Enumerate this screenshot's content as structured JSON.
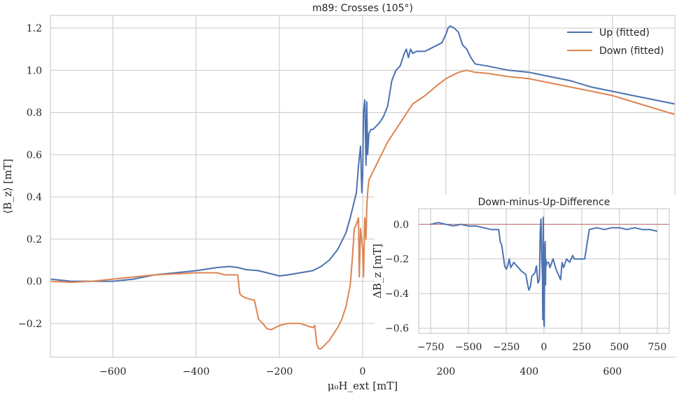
{
  "chart_data": [
    {
      "type": "line",
      "title": "m89: Crosses (105°)",
      "xlabel": "μ₀H_ext [mT]",
      "ylabel": "⟨B_z⟩ [mT]",
      "xlim": [
        -750,
        750
      ],
      "ylim": [
        -0.36,
        1.26
      ],
      "xticks": [
        -600,
        -400,
        -200,
        0,
        200,
        400,
        600
      ],
      "xtick_labels": [
        "−600",
        "−400",
        "−200",
        "0",
        "200",
        "400",
        "600"
      ],
      "yticks": [
        -0.2,
        0.0,
        0.2,
        0.4,
        0.6,
        0.8,
        1.0,
        1.2
      ],
      "ytick_labels": [
        "−0.2",
        "0.0",
        "0.2",
        "0.4",
        "0.6",
        "0.8",
        "1.0",
        "1.2"
      ],
      "grid": true,
      "legend_position": "top-right",
      "series": [
        {
          "name": "Up (fitted)",
          "color": "#4c72b0",
          "x": [
            -750,
            -700,
            -650,
            -600,
            -550,
            -500,
            -450,
            -400,
            -350,
            -320,
            -300,
            -280,
            -250,
            -220,
            -200,
            -180,
            -150,
            -120,
            -100,
            -80,
            -60,
            -40,
            -30,
            -20,
            -15,
            -10,
            -5,
            -2,
            0,
            2,
            5,
            8,
            10,
            12,
            15,
            20,
            25,
            30,
            40,
            50,
            60,
            70,
            80,
            90,
            100,
            105,
            110,
            115,
            120,
            130,
            150,
            170,
            190,
            200,
            205,
            210,
            220,
            230,
            240,
            250,
            260,
            270,
            300,
            350,
            400,
            450,
            500,
            550,
            600,
            650,
            700,
            750
          ],
          "y": [
            0.01,
            0.0,
            0.0,
            0.0,
            0.01,
            0.03,
            0.04,
            0.05,
            0.065,
            0.07,
            0.065,
            0.055,
            0.05,
            0.035,
            0.025,
            0.03,
            0.04,
            0.05,
            0.07,
            0.1,
            0.15,
            0.23,
            0.3,
            0.38,
            0.42,
            0.55,
            0.64,
            0.42,
            0.5,
            0.8,
            0.86,
            0.55,
            0.85,
            0.6,
            0.7,
            0.72,
            0.72,
            0.73,
            0.75,
            0.78,
            0.83,
            0.95,
            1.0,
            1.02,
            1.08,
            1.1,
            1.06,
            1.1,
            1.08,
            1.09,
            1.09,
            1.11,
            1.13,
            1.17,
            1.2,
            1.21,
            1.2,
            1.18,
            1.12,
            1.1,
            1.06,
            1.03,
            1.02,
            1.0,
            0.99,
            0.97,
            0.95,
            0.92,
            0.9,
            0.88,
            0.86,
            0.84
          ]
        },
        {
          "name": "Down (fitted)",
          "color": "#dd8452",
          "x": [
            -750,
            -700,
            -650,
            -600,
            -550,
            -500,
            -450,
            -400,
            -350,
            -330,
            -300,
            -295,
            -290,
            -280,
            -260,
            -250,
            -240,
            -230,
            -220,
            -200,
            -180,
            -150,
            -120,
            -115,
            -110,
            -105,
            -100,
            -90,
            -80,
            -60,
            -50,
            -40,
            -30,
            -25,
            -20,
            -15,
            -10,
            -8,
            -5,
            0,
            2,
            5,
            8,
            10,
            12,
            15,
            20,
            30,
            40,
            60,
            80,
            100,
            120,
            150,
            180,
            200,
            230,
            250,
            270,
            300,
            350,
            400,
            450,
            500,
            550,
            600,
            650,
            700,
            750
          ],
          "y": [
            0.0,
            -0.005,
            0.0,
            0.01,
            0.02,
            0.03,
            0.035,
            0.04,
            0.04,
            0.03,
            0.03,
            -0.06,
            -0.07,
            -0.08,
            -0.09,
            -0.18,
            -0.2,
            -0.225,
            -0.23,
            -0.21,
            -0.2,
            -0.2,
            -0.22,
            -0.21,
            -0.3,
            -0.32,
            -0.32,
            -0.3,
            -0.28,
            -0.22,
            -0.18,
            -0.12,
            -0.02,
            0.1,
            0.25,
            0.27,
            0.3,
            0.02,
            0.25,
            0.15,
            0.02,
            0.3,
            0.2,
            0.35,
            0.42,
            0.48,
            0.5,
            0.54,
            0.58,
            0.66,
            0.72,
            0.78,
            0.84,
            0.88,
            0.93,
            0.96,
            0.99,
            1.0,
            0.99,
            0.985,
            0.97,
            0.96,
            0.94,
            0.92,
            0.9,
            0.88,
            0.85,
            0.82,
            0.79
          ]
        }
      ]
    },
    {
      "type": "line",
      "title": "Down-minus-Up-Difference",
      "xlabel": "",
      "ylabel": "ΔB_z [mT]",
      "xlim": [
        -830,
        830
      ],
      "ylim": [
        -0.63,
        0.09
      ],
      "xticks": [
        -750,
        -500,
        -250,
        0,
        250,
        500,
        750
      ],
      "xtick_labels": [
        "−750",
        "−500",
        "−250",
        "0",
        "250",
        "500",
        "750"
      ],
      "yticks": [
        0.0,
        -0.2,
        -0.4,
        -0.6
      ],
      "ytick_labels": [
        "0.0",
        "−0.2",
        "−0.4",
        "−0.6"
      ],
      "grid": true,
      "reference_line": {
        "y": 0.0,
        "color": "#c44e52"
      },
      "series": [
        {
          "color": "#4c72b0",
          "x": [
            -750,
            -700,
            -650,
            -600,
            -550,
            -500,
            -450,
            -400,
            -350,
            -300,
            -290,
            -280,
            -260,
            -250,
            -240,
            -230,
            -220,
            -200,
            -180,
            -150,
            -120,
            -110,
            -100,
            -90,
            -80,
            -60,
            -50,
            -40,
            -30,
            -25,
            -20,
            -15,
            -10,
            -8,
            -5,
            0,
            2,
            5,
            8,
            10,
            12,
            15,
            20,
            30,
            40,
            60,
            80,
            100,
            110,
            120,
            130,
            150,
            170,
            190,
            200,
            210,
            230,
            250,
            270,
            300,
            350,
            400,
            450,
            500,
            550,
            600,
            650,
            700,
            750
          ],
          "y": [
            0.0,
            0.01,
            0.0,
            -0.01,
            0.0,
            -0.01,
            -0.01,
            -0.02,
            -0.03,
            -0.03,
            -0.1,
            -0.12,
            -0.24,
            -0.26,
            -0.24,
            -0.2,
            -0.25,
            -0.22,
            -0.24,
            -0.27,
            -0.29,
            -0.34,
            -0.38,
            -0.36,
            -0.3,
            -0.28,
            -0.24,
            -0.34,
            -0.32,
            -0.05,
            0.03,
            -0.2,
            -0.3,
            -0.55,
            0.04,
            -0.58,
            -0.59,
            -0.15,
            -0.1,
            -0.35,
            -0.2,
            -0.24,
            -0.22,
            -0.22,
            -0.25,
            -0.2,
            -0.26,
            -0.3,
            -0.32,
            -0.22,
            -0.25,
            -0.2,
            -0.22,
            -0.18,
            -0.2,
            -0.2,
            -0.2,
            -0.2,
            -0.2,
            -0.03,
            -0.02,
            -0.03,
            -0.02,
            -0.02,
            -0.03,
            -0.02,
            -0.03,
            -0.03,
            -0.04
          ]
        }
      ]
    }
  ]
}
